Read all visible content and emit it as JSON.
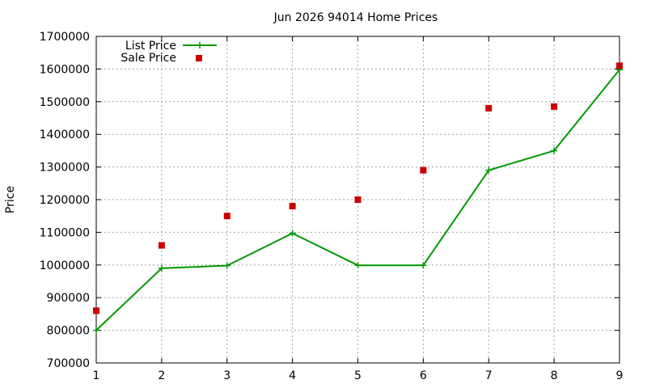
{
  "chart_data": {
    "type": "line",
    "title": "Jun 2026 94014 Home Prices",
    "xlabel": "",
    "ylabel": "Price",
    "x": [
      1,
      2,
      3,
      4,
      5,
      6,
      7,
      8,
      9
    ],
    "xlim": [
      1,
      9
    ],
    "ylim": [
      700000,
      1700000
    ],
    "x_ticks": [
      "1",
      "2",
      "3",
      "4",
      "5",
      "6",
      "7",
      "8",
      "9"
    ],
    "y_ticks": [
      "700000",
      "800000",
      "900000",
      "1000000",
      "1100000",
      "1200000",
      "1300000",
      "1400000",
      "1500000",
      "1600000",
      "1700000"
    ],
    "grid": true,
    "legend_position": "top-left",
    "series": [
      {
        "name": "List Price",
        "style": "linespoints",
        "marker": "plus",
        "color": "#009900",
        "values": [
          800000,
          990000,
          998000,
          1097000,
          999000,
          999000,
          1290000,
          1350000,
          1598000
        ]
      },
      {
        "name": "Sale Price",
        "style": "points",
        "marker": "square",
        "color": "#cc0000",
        "values": [
          860000,
          1060000,
          1150000,
          1180000,
          1200000,
          1290000,
          1480000,
          1485000,
          1610000
        ]
      }
    ]
  }
}
